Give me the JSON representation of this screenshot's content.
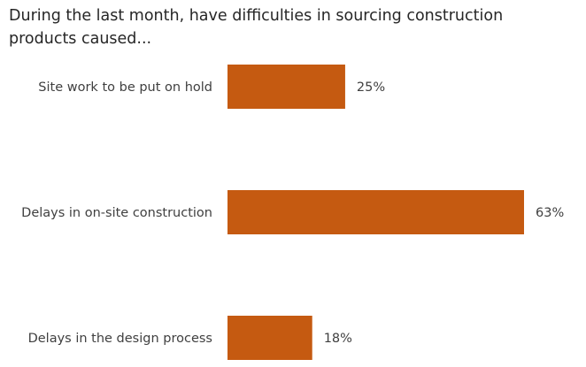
{
  "chart_data": {
    "type": "bar",
    "orientation": "horizontal",
    "title": "During the last month, have difficulties in sourcing construction products caused...",
    "categories": [
      "Site work to be put on hold",
      "Delays in on-site construction",
      "Delays in the design process"
    ],
    "values": [
      25,
      63,
      18
    ],
    "value_labels": [
      "25%",
      "63%",
      "18%"
    ],
    "unit": "%",
    "bar_color": "#C55A11",
    "xlabel": "",
    "ylabel": "",
    "grid": false,
    "legend": "none"
  }
}
